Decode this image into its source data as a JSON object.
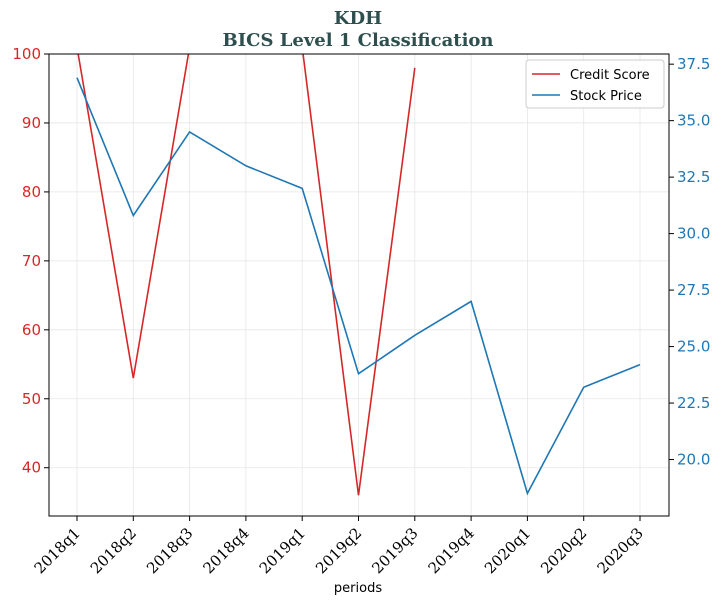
{
  "chart_data": {
    "type": "line",
    "title": "KDH",
    "subtitle": "BICS Level 1 Classification",
    "xlabel": "periods",
    "categories": [
      "2018q1",
      "2018q2",
      "2018q3",
      "2018q4",
      "2019q1",
      "2019q2",
      "2019q3",
      "2019q4",
      "2020q1",
      "2020q2",
      "2020q3"
    ],
    "left_axis": {
      "ylim": [
        33,
        100
      ],
      "ticks": [
        40,
        50,
        60,
        70,
        80,
        90,
        100
      ],
      "color": "#d62728"
    },
    "right_axis": {
      "ylim": [
        17.5,
        37.95
      ],
      "ticks": [
        20.0,
        22.5,
        25.0,
        27.5,
        30.0,
        32.5,
        35.0,
        37.5
      ],
      "color": "#1f77b4"
    },
    "series": [
      {
        "name": "Credit Score",
        "axis": "left",
        "color": "#d62728",
        "values": [
          101,
          53,
          101,
          null,
          101,
          36,
          98,
          null,
          null,
          null,
          null
        ]
      },
      {
        "name": "Stock Price",
        "axis": "right",
        "color": "#1f77b4",
        "values": [
          36.9,
          30.8,
          34.5,
          33.0,
          32.0,
          23.8,
          25.5,
          27.0,
          18.5,
          23.2,
          24.2
        ]
      }
    ],
    "grid": true,
    "legend": "top-right"
  }
}
